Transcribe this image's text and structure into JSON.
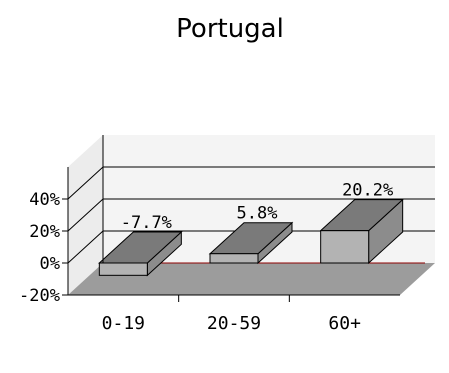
{
  "chart_data": {
    "type": "bar",
    "title": "Portugal",
    "categories": [
      "0-19",
      "20-59",
      "60+"
    ],
    "values": [
      -7.7,
      5.8,
      20.2
    ],
    "data_labels": [
      "-7.7%",
      "5.8%",
      "20.2%"
    ],
    "ylim": [
      -20,
      60
    ],
    "yticks": [
      -20,
      0,
      20,
      40
    ],
    "ytick_labels": [
      "-20%",
      "0%",
      "20%",
      "40%"
    ],
    "xlabel": "",
    "ylabel": "",
    "grid": true,
    "legend": "none",
    "colors": {
      "bar_front": "#b3b3b3",
      "bar_top": "#7a7a7a",
      "bar_side": "#8c8c8c",
      "floor": "#9c9c9c",
      "back_wall": "#f4f4f4",
      "side_wall": "#ececec",
      "zero_line": "#8b0000"
    }
  }
}
